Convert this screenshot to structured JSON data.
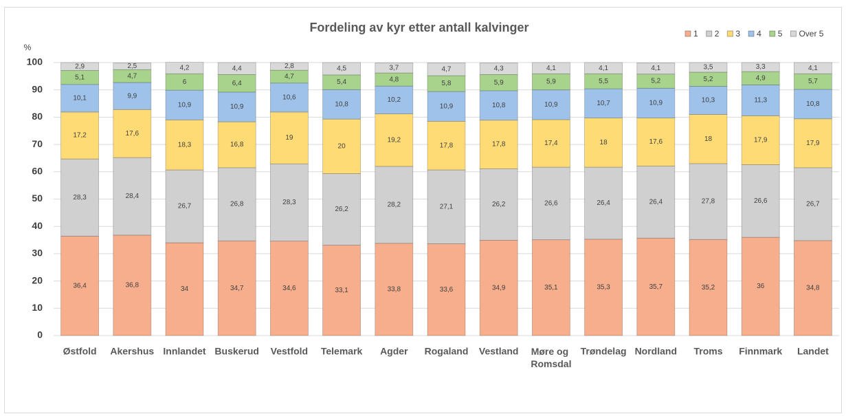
{
  "chart_data": {
    "type": "stacked_bar",
    "title": "Fordeling av kyr etter antall kalvinger",
    "y_label": "%",
    "categories": [
      "Østfold",
      "Akershus",
      "Innlandet",
      "Buskerud",
      "Vestfold",
      "Telemark",
      "Agder",
      "Rogaland",
      "Vestland",
      "Møre og Romsdal",
      "Trøndelag",
      "Nordland",
      "Troms",
      "Finnmark",
      "Landet"
    ],
    "series": [
      {
        "name": "1",
        "color": "#f7ae8c",
        "values": [
          36.4,
          36.8,
          34,
          34.7,
          34.6,
          33.1,
          33.8,
          33.6,
          34.9,
          35.1,
          35.3,
          35.7,
          35.2,
          36,
          34.8
        ],
        "value_labels": [
          "36,4",
          "36,8",
          "34",
          "34,7",
          "34,6",
          "33,1",
          "33,8",
          "33,6",
          "34,9",
          "35,1",
          "35,3",
          "35,7",
          "35,2",
          "36",
          "34,8"
        ]
      },
      {
        "name": "2",
        "color": "#d0d0d0",
        "values": [
          28.3,
          28.4,
          26.7,
          26.8,
          28.3,
          26.2,
          28.2,
          27.1,
          26.2,
          26.6,
          26.4,
          26.4,
          27.8,
          26.6,
          26.7
        ],
        "value_labels": [
          "28,3",
          "28,4",
          "26,7",
          "26,8",
          "28,3",
          "26,2",
          "28,2",
          "27,1",
          "26,2",
          "26,6",
          "26,4",
          "26,4",
          "27,8",
          "26,6",
          "26,7"
        ]
      },
      {
        "name": "3",
        "color": "#ffdb75",
        "values": [
          17.2,
          17.6,
          18.3,
          16.8,
          19,
          20,
          19.2,
          17.8,
          17.8,
          17.4,
          18,
          17.6,
          18,
          17.9,
          17.9
        ],
        "value_labels": [
          "17,2",
          "17,6",
          "18,3",
          "16,8",
          "19",
          "20",
          "19,2",
          "17,8",
          "17,8",
          "17,4",
          "18",
          "17,6",
          "18",
          "17,9",
          "17,9"
        ]
      },
      {
        "name": "4",
        "color": "#9fc2ea",
        "values": [
          10.1,
          9.9,
          10.9,
          10.9,
          10.6,
          10.8,
          10.2,
          10.9,
          10.8,
          10.9,
          10.7,
          10.9,
          10.3,
          11.3,
          10.8
        ],
        "value_labels": [
          "10,1",
          "9,9",
          "10,9",
          "10,9",
          "10,6",
          "10,8",
          "10,2",
          "10,9",
          "10,8",
          "10,9",
          "10,7",
          "10,9",
          "10,3",
          "11,3",
          "10,8"
        ]
      },
      {
        "name": "5",
        "color": "#a8d38c",
        "values": [
          5.1,
          4.7,
          6,
          6.4,
          4.7,
          5.4,
          4.8,
          5.8,
          5.9,
          5.9,
          5.5,
          5.2,
          5.2,
          4.9,
          5.7
        ],
        "value_labels": [
          "5,1",
          "4,7",
          "6",
          "6,4",
          "4,7",
          "5,4",
          "4,8",
          "5,8",
          "5,9",
          "5,9",
          "5,5",
          "5,2",
          "5,2",
          "4,9",
          "5,7"
        ]
      },
      {
        "name": "Over 5",
        "color": "#d9d9d9",
        "values": [
          2.9,
          2.5,
          4.2,
          4.4,
          2.8,
          4.5,
          3.7,
          4.7,
          4.3,
          4.1,
          4.1,
          4.1,
          3.5,
          3.3,
          4.1
        ],
        "value_labels": [
          "2,9",
          "2,5",
          "4,2",
          "4,4",
          "2,8",
          "4,5",
          "3,7",
          "4,7",
          "4,3",
          "4,1",
          "4,1",
          "4,1",
          "3,5",
          "3,3",
          "4,1"
        ]
      }
    ],
    "ylim": [
      0,
      100
    ],
    "yticks": [
      0,
      10,
      20,
      30,
      40,
      50,
      60,
      70,
      80,
      90,
      100
    ],
    "grid": true,
    "legend": "top-right"
  }
}
